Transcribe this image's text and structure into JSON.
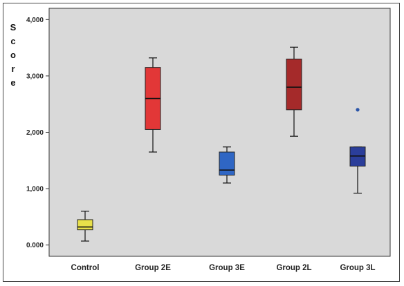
{
  "chart_data": {
    "type": "box",
    "ylabel": "Score",
    "ylim": [
      -0.2,
      4.2
    ],
    "yticks": [
      "0.000",
      "1,000",
      "2,000",
      "3,000",
      "4,000"
    ],
    "yticks_values": [
      0,
      1,
      2,
      3,
      4
    ],
    "grid": false,
    "categories": [
      "Control",
      "Group 2E",
      "Group 3E",
      "Group 2L",
      "Group 3L"
    ],
    "boxes": [
      {
        "min": 0.07,
        "q1": 0.27,
        "median": 0.32,
        "q3": 0.45,
        "max": 0.6,
        "outliers": [],
        "color": "#e8e04a"
      },
      {
        "min": 1.65,
        "q1": 2.05,
        "median": 2.6,
        "q3": 3.15,
        "max": 3.32,
        "outliers": [],
        "color": "#e23737"
      },
      {
        "min": 1.1,
        "q1": 1.24,
        "median": 1.33,
        "q3": 1.65,
        "max": 1.74,
        "outliers": [],
        "color": "#2f66c4"
      },
      {
        "min": 1.93,
        "q1": 2.4,
        "median": 2.8,
        "q3": 3.3,
        "max": 3.51,
        "outliers": [],
        "color": "#a52a2a"
      },
      {
        "min": 0.92,
        "q1": 1.4,
        "median": 1.58,
        "q3": 1.74,
        "max": 1.74,
        "outliers": [
          2.4
        ],
        "color": "#2b3e9a"
      }
    ],
    "plot_background": "#d9d9d9"
  }
}
